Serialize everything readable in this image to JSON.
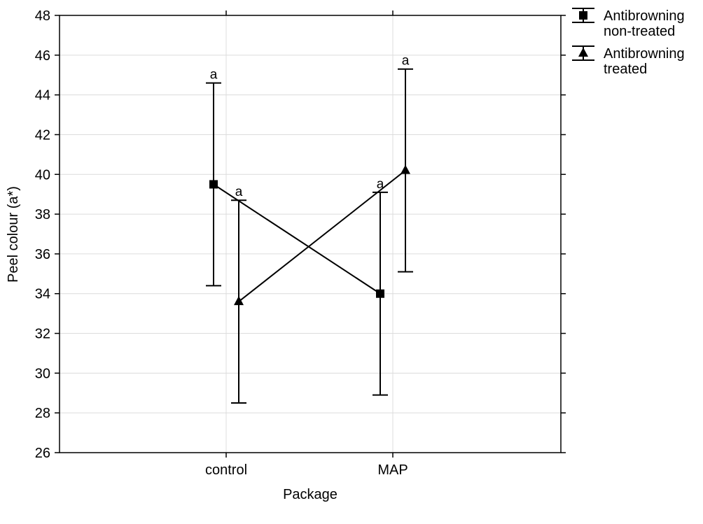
{
  "chart_data": {
    "type": "line",
    "title": "",
    "xlabel": "Package",
    "ylabel": "Peel colour (a*)",
    "categories": [
      "control",
      "MAP"
    ],
    "ylim": [
      26,
      48
    ],
    "yticks": [
      "26",
      "28",
      "30",
      "32",
      "34",
      "36",
      "38",
      "40",
      "42",
      "44",
      "46",
      "48"
    ],
    "grid": true,
    "legend_position": "top-right, outside plot",
    "series": [
      {
        "name": "Antibrowning non-treated",
        "name_lines": [
          "Antibrowning",
          "non-treated"
        ],
        "marker": "square",
        "color": "#000000",
        "values": [
          39.5,
          34.0
        ],
        "err_low": [
          34.4,
          28.9
        ],
        "err_high": [
          44.6,
          39.1
        ],
        "labels": [
          "a",
          "a"
        ]
      },
      {
        "name": "Antibrowning treated",
        "name_lines": [
          "Antibrowning",
          "treated"
        ],
        "marker": "triangle",
        "color": "#000000",
        "values": [
          33.6,
          40.2
        ],
        "err_low": [
          28.5,
          35.1
        ],
        "err_high": [
          38.7,
          45.3
        ],
        "labels": [
          "a",
          "a"
        ]
      }
    ]
  }
}
